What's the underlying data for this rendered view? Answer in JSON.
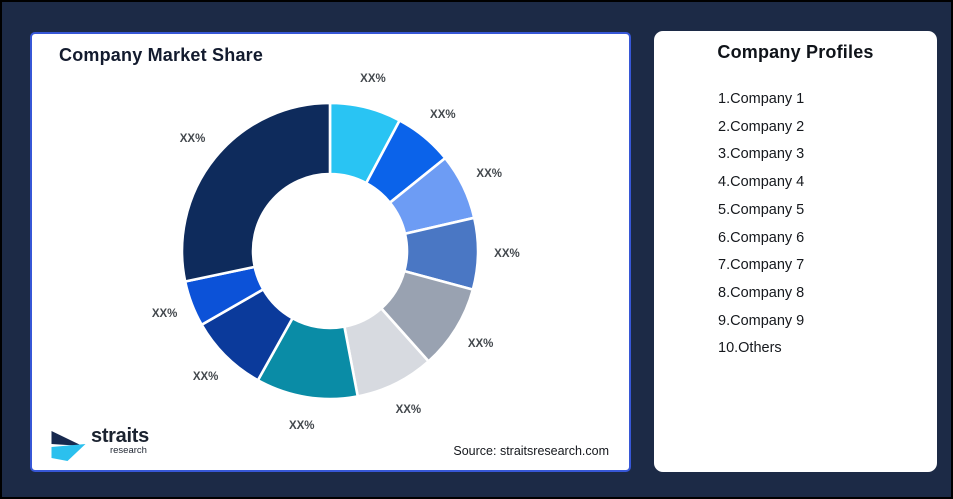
{
  "page": {
    "background_color": "#1C2A46",
    "frame_border_color": "#000000"
  },
  "left_card": {
    "title": "Company Market Share",
    "border_color": "#3757D6",
    "source": "Source: straitsresearch.com",
    "logo": {
      "brand": "straits",
      "sub": "research",
      "navy": "#17294E",
      "cyan": "#2BC0EE"
    }
  },
  "right_card": {
    "title": "Company Profiles",
    "companies": [
      {
        "number": "1",
        "name": "Company 1"
      },
      {
        "number": "2",
        "name": "Company 2"
      },
      {
        "number": "3",
        "name": "Company 3"
      },
      {
        "number": "4",
        "name": "Company 4"
      },
      {
        "number": "5",
        "name": "Company 5"
      },
      {
        "number": "6",
        "name": "Company 6"
      },
      {
        "number": "7",
        "name": "Company 7"
      },
      {
        "number": "8",
        "name": "Company 8"
      },
      {
        "number": "9",
        "name": "Company 9"
      },
      {
        "number": "10",
        "name": "Others"
      }
    ]
  },
  "chart_data": {
    "type": "pie",
    "donut": true,
    "title": "Company Market Share",
    "start_angle_deg": 0,
    "direction": "clockwise",
    "inner_radius_ratio": 0.52,
    "values_masked": true,
    "label_color": "#43484D",
    "separator_color": "#ffffff",
    "segments": [
      {
        "label": "XX%",
        "percent_est": 7.8,
        "color": "#29C4F3"
      },
      {
        "label": "XX%",
        "percent_est": 6.4,
        "color": "#0B63EA"
      },
      {
        "label": "XX%",
        "percent_est": 7.2,
        "color": "#6D9CF4"
      },
      {
        "label": "XX%",
        "percent_est": 7.8,
        "color": "#4A77C4"
      },
      {
        "label": "XX%",
        "percent_est": 9.2,
        "color": "#99A2B1"
      },
      {
        "label": "XX%",
        "percent_est": 8.6,
        "color": "#D7DAE0"
      },
      {
        "label": "XX%",
        "percent_est": 11.1,
        "color": "#0A8CA6"
      },
      {
        "label": "XX%",
        "percent_est": 8.6,
        "color": "#0B3A9B"
      },
      {
        "label": "XX%",
        "percent_est": 5.0,
        "color": "#0C52D8"
      },
      {
        "label": "XX%",
        "percent_est": 28.3,
        "color": "#0E2B5C"
      }
    ]
  }
}
